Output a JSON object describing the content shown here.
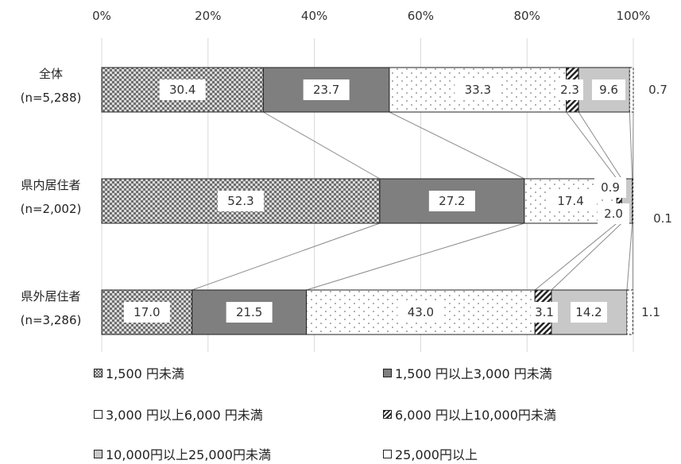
{
  "chart_data": {
    "type": "bar",
    "orientation": "horizontal",
    "stacked": "percent",
    "categories": [
      [
        "全体",
        "(n=5,288)"
      ],
      [
        "県内居住者",
        "(n=2,002)"
      ],
      [
        "県外居住者",
        "(n=3,286)"
      ]
    ],
    "series": [
      {
        "name": "1,500 円未満",
        "values": [
          30.4,
          52.3,
          17.0
        ],
        "pattern": "crosshatch",
        "color": "#888888"
      },
      {
        "name": "1,500 円以上3,000 円未満",
        "values": [
          23.7,
          27.2,
          21.5
        ],
        "pattern": "solid",
        "color": "#7f7f7f"
      },
      {
        "name": "3,000 円以上6,000 円未満",
        "values": [
          33.3,
          17.4,
          43.0
        ],
        "pattern": "dots",
        "color": "#ffffff"
      },
      {
        "name": "6,000 円以上10,000円未満",
        "values": [
          2.3,
          0.9,
          3.1
        ],
        "pattern": "diagonal",
        "color": "#ffffff"
      },
      {
        "name": "10,000円以上25,000円未満",
        "values": [
          9.6,
          2.0,
          14.2
        ],
        "pattern": "solid",
        "color": "#c8c8c8"
      },
      {
        "name": "25,000円以上",
        "values": [
          0.7,
          0.1,
          1.1
        ],
        "pattern": "dashed-outline",
        "color": "#ffffff"
      }
    ],
    "x_ticks": [
      "0%",
      "20%",
      "40%",
      "60%",
      "80%",
      "100%"
    ],
    "xlim": [
      0,
      100
    ],
    "grid": true,
    "legend_position": "bottom"
  }
}
